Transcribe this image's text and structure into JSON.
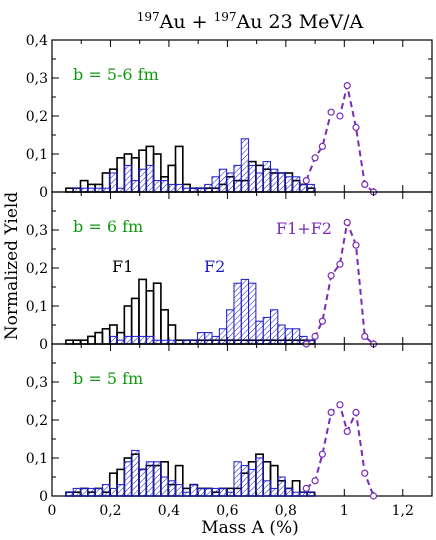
{
  "figure": {
    "title_pre": "197",
    "title_a": "Au + ",
    "title_mid": "197",
    "title_b": "Au   23 MeV/A",
    "ylabel": "Normalized Yield",
    "xlabel": "Mass A (%)",
    "x_ticks": [
      "0",
      "0,2",
      "0,4",
      "0,6",
      "0,8",
      "1",
      "1,2"
    ],
    "colors": {
      "F1": "#000000",
      "F2": "#1a1acc",
      "F1+F2": "#7a2bb8",
      "label_green": "#119911"
    }
  },
  "chart_data": [
    {
      "type": "bar",
      "panel": "top",
      "label": "b = 5-6 fm",
      "xlim": [
        0,
        1.3
      ],
      "ylim": [
        0,
        0.4
      ],
      "y_ticks": [
        "0",
        "0,1",
        "0,2",
        "0,3",
        "0,4"
      ],
      "series": [
        {
          "key": "F1",
          "style": "outline",
          "bin_width": 0.025,
          "x": [
            0.06,
            0.085,
            0.11,
            0.135,
            0.16,
            0.185,
            0.21,
            0.235,
            0.26,
            0.285,
            0.31,
            0.335,
            0.36,
            0.385,
            0.41,
            0.435,
            0.46,
            0.485,
            0.51,
            0.535,
            0.56,
            0.585,
            0.61,
            0.635,
            0.66,
            0.685,
            0.71,
            0.735,
            0.76,
            0.785,
            0.81,
            0.835,
            0.86,
            0.885
          ],
          "values": [
            0.01,
            0.01,
            0.03,
            0.02,
            0.02,
            0.05,
            0.06,
            0.09,
            0.1,
            0.09,
            0.11,
            0.12,
            0.1,
            0.04,
            0.07,
            0.12,
            0.02,
            0.01,
            0.01,
            0.01,
            0.01,
            0.02,
            0.04,
            0.03,
            0.03,
            0.08,
            0.07,
            0.06,
            0.05,
            0.05,
            0.05,
            0.03,
            0.02,
            0.01
          ]
        },
        {
          "key": "F2",
          "style": "hatched",
          "bin_width": 0.025,
          "x": [
            0.06,
            0.085,
            0.11,
            0.135,
            0.16,
            0.185,
            0.21,
            0.235,
            0.26,
            0.285,
            0.31,
            0.335,
            0.36,
            0.385,
            0.41,
            0.435,
            0.46,
            0.485,
            0.51,
            0.535,
            0.56,
            0.585,
            0.61,
            0.635,
            0.66,
            0.685,
            0.71,
            0.735,
            0.76,
            0.785,
            0.81,
            0.835,
            0.86,
            0.885
          ],
          "values": [
            0.0,
            0.01,
            0.01,
            0.01,
            0.01,
            0.01,
            0.05,
            0.01,
            0.07,
            0.03,
            0.06,
            0.07,
            0.03,
            0.03,
            0.02,
            0.02,
            0.01,
            0.01,
            0.01,
            0.02,
            0.04,
            0.06,
            0.05,
            0.07,
            0.14,
            0.07,
            0.05,
            0.08,
            0.06,
            0.05,
            0.04,
            0.04,
            0.02,
            0.02
          ]
        },
        {
          "key": "F1+F2",
          "style": "dashed-line",
          "x": [
            0.87,
            0.9,
            0.925,
            0.955,
            0.985,
            1.01,
            1.04,
            1.07,
            1.1
          ],
          "values": [
            0.03,
            0.09,
            0.12,
            0.21,
            0.2,
            0.28,
            0.17,
            0.02,
            0.0
          ]
        }
      ]
    },
    {
      "type": "bar",
      "panel": "middle",
      "label": "b = 6 fm",
      "annotations": [
        "F1",
        "F2",
        "F1+F2"
      ],
      "xlim": [
        0,
        1.3
      ],
      "ylim": [
        0,
        0.4
      ],
      "y_ticks": [
        "0",
        "0,1",
        "0,2",
        "0,3"
      ],
      "series": [
        {
          "key": "F1",
          "style": "outline",
          "bin_width": 0.025,
          "x": [
            0.06,
            0.085,
            0.11,
            0.135,
            0.16,
            0.185,
            0.21,
            0.235,
            0.26,
            0.285,
            0.31,
            0.335,
            0.36,
            0.385,
            0.41,
            0.435,
            0.46,
            0.485,
            0.51,
            0.535,
            0.56,
            0.585,
            0.61,
            0.635,
            0.66,
            0.685,
            0.71,
            0.735,
            0.76,
            0.785,
            0.81,
            0.835,
            0.86,
            0.885
          ],
          "values": [
            0.01,
            0.01,
            0.01,
            0.02,
            0.03,
            0.04,
            0.05,
            0.03,
            0.1,
            0.12,
            0.17,
            0.14,
            0.16,
            0.09,
            0.05,
            0.01,
            0.01,
            0.01,
            0.01,
            0.01,
            0.01,
            0.01,
            0.01,
            0.01,
            0.01,
            0.01,
            0.01,
            0.01,
            0.01,
            0.01,
            0.01,
            0.01,
            0.01,
            0.01
          ]
        },
        {
          "key": "F2",
          "style": "hatched",
          "bin_width": 0.025,
          "x": [
            0.06,
            0.085,
            0.11,
            0.135,
            0.16,
            0.185,
            0.21,
            0.235,
            0.26,
            0.285,
            0.31,
            0.335,
            0.36,
            0.385,
            0.41,
            0.435,
            0.46,
            0.485,
            0.51,
            0.535,
            0.56,
            0.585,
            0.61,
            0.635,
            0.66,
            0.685,
            0.71,
            0.735,
            0.76,
            0.785,
            0.81,
            0.835,
            0.86,
            0.885
          ],
          "values": [
            0.0,
            0.0,
            0.0,
            0.0,
            0.0,
            0.0,
            0.02,
            0.01,
            0.02,
            0.02,
            0.02,
            0.02,
            0.01,
            0.01,
            0.01,
            0.0,
            0.01,
            0.01,
            0.03,
            0.03,
            0.02,
            0.04,
            0.09,
            0.16,
            0.17,
            0.16,
            0.06,
            0.07,
            0.09,
            0.05,
            0.04,
            0.04,
            0.02,
            0.01
          ]
        },
        {
          "key": "F1+F2",
          "style": "dashed-line",
          "x": [
            0.87,
            0.9,
            0.925,
            0.955,
            0.985,
            1.01,
            1.04,
            1.07,
            1.1
          ],
          "values": [
            0.0,
            0.02,
            0.06,
            0.18,
            0.21,
            0.32,
            0.26,
            0.02,
            0.0
          ]
        }
      ]
    },
    {
      "type": "bar",
      "panel": "bottom",
      "label": "b = 5 fm",
      "xlim": [
        0,
        1.3
      ],
      "ylim": [
        0,
        0.4
      ],
      "y_ticks": [
        "0",
        "0,1",
        "0,2",
        "0,3"
      ],
      "series": [
        {
          "key": "F1",
          "style": "outline",
          "bin_width": 0.025,
          "x": [
            0.06,
            0.085,
            0.11,
            0.135,
            0.16,
            0.185,
            0.21,
            0.235,
            0.26,
            0.285,
            0.31,
            0.335,
            0.36,
            0.385,
            0.41,
            0.435,
            0.46,
            0.485,
            0.51,
            0.535,
            0.56,
            0.585,
            0.61,
            0.635,
            0.66,
            0.685,
            0.71,
            0.735,
            0.76,
            0.785,
            0.81,
            0.835,
            0.86,
            0.885
          ],
          "values": [
            0.01,
            0.01,
            0.02,
            0.01,
            0.02,
            0.01,
            0.06,
            0.07,
            0.1,
            0.11,
            0.07,
            0.08,
            0.08,
            0.09,
            0.03,
            0.08,
            0.02,
            0.03,
            0.02,
            0.02,
            0.01,
            0.02,
            0.02,
            0.02,
            0.06,
            0.09,
            0.11,
            0.09,
            0.08,
            0.04,
            0.02,
            0.04,
            0.01,
            0.01
          ]
        },
        {
          "key": "F2",
          "style": "hatched",
          "bin_width": 0.025,
          "x": [
            0.06,
            0.085,
            0.11,
            0.135,
            0.16,
            0.185,
            0.21,
            0.235,
            0.26,
            0.285,
            0.31,
            0.335,
            0.36,
            0.385,
            0.41,
            0.435,
            0.46,
            0.485,
            0.51,
            0.535,
            0.56,
            0.585,
            0.61,
            0.635,
            0.66,
            0.685,
            0.71,
            0.735,
            0.76,
            0.785,
            0.81,
            0.835,
            0.86,
            0.885
          ],
          "values": [
            0.01,
            0.02,
            0.02,
            0.02,
            0.02,
            0.03,
            0.02,
            0.03,
            0.09,
            0.12,
            0.07,
            0.09,
            0.09,
            0.05,
            0.04,
            0.03,
            0.01,
            0.03,
            0.02,
            0.02,
            0.02,
            0.02,
            0.01,
            0.09,
            0.08,
            0.07,
            0.1,
            0.04,
            0.02,
            0.05,
            0.02,
            0.01,
            0.01,
            0.01
          ]
        },
        {
          "key": "F1+F2",
          "style": "dashed-line",
          "x": [
            0.87,
            0.9,
            0.925,
            0.955,
            0.985,
            1.01,
            1.04,
            1.07,
            1.1
          ],
          "values": [
            0.02,
            0.04,
            0.11,
            0.22,
            0.24,
            0.17,
            0.22,
            0.06,
            0.0
          ]
        }
      ]
    }
  ]
}
